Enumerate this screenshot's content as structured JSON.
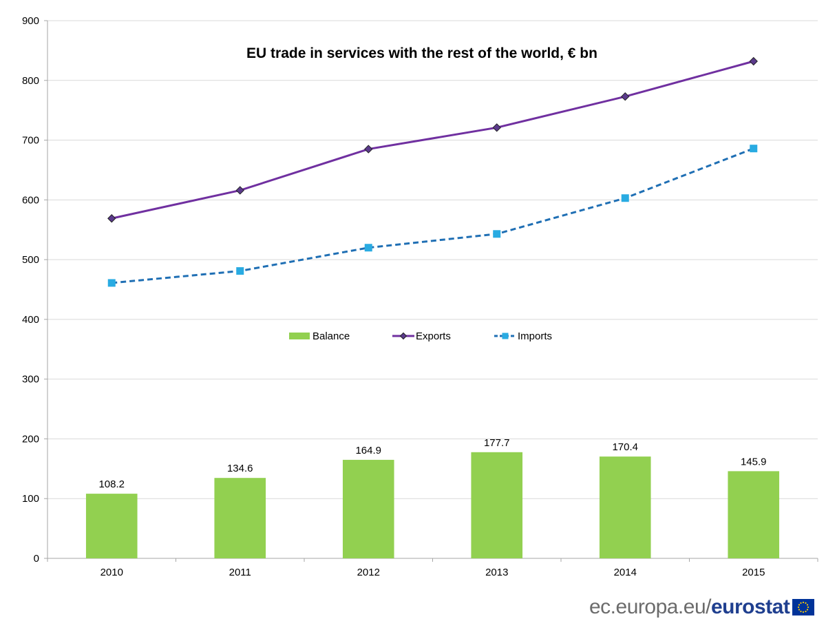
{
  "chart_data": {
    "type": "bar",
    "title": "EU trade in services with the rest of the world, € bn",
    "categories": [
      "2010",
      "2011",
      "2012",
      "2013",
      "2014",
      "2015"
    ],
    "ylim": [
      0,
      900
    ],
    "yticks": [
      "0",
      "100",
      "200",
      "300",
      "400",
      "500",
      "600",
      "700",
      "800",
      "900"
    ],
    "grid": true,
    "legend_position": "center",
    "series": [
      {
        "name": "Balance",
        "kind": "bar",
        "color": "#92d050",
        "values": [
          108.2,
          134.6,
          164.9,
          177.7,
          170.4,
          145.9
        ],
        "labels": [
          "108.2",
          "134.6",
          "164.9",
          "177.7",
          "170.4",
          "145.9"
        ]
      },
      {
        "name": "Exports",
        "kind": "line",
        "color": "#7030a0",
        "marker": "diamond",
        "marker_color": "#5b3a8c",
        "line_style": "solid",
        "values": [
          569,
          616,
          685,
          721,
          773,
          832
        ]
      },
      {
        "name": "Imports",
        "kind": "line",
        "color": "#1f6fb4",
        "marker": "square",
        "marker_color": "#29abe2",
        "line_style": "dashed",
        "values": [
          461,
          481,
          520,
          543,
          603,
          686
        ]
      }
    ]
  },
  "footer": {
    "url": "ec.europa.eu/",
    "brand": "eurostat",
    "flag_icon": "eu-flag-icon"
  }
}
